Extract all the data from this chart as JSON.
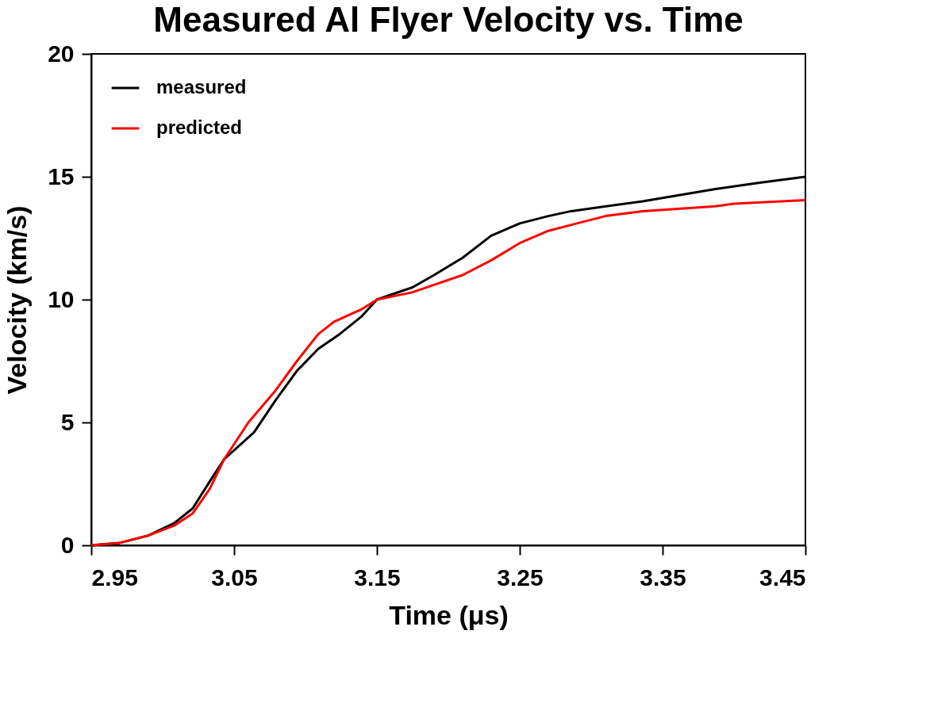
{
  "chart_data": {
    "type": "line",
    "title": "Measured Al Flyer Velocity vs. Time",
    "xlabel": "Time  (μs)",
    "ylabel": "Velocity  (km/s)",
    "xlim": [
      2.95,
      3.45
    ],
    "xticks": [
      2.95,
      3.05,
      3.15,
      3.25,
      3.35,
      3.45
    ],
    "ylim": [
      0,
      20
    ],
    "yticks": [
      0,
      5,
      10,
      15,
      20
    ],
    "grid": false,
    "legend": "top left",
    "marker": "none",
    "line_style": "solid",
    "series": [
      {
        "name": "measured",
        "color": "#000000",
        "x": [
          2.95,
          2.97,
          2.99,
          3.008,
          3.021,
          3.033,
          3.043,
          3.064,
          3.079,
          3.094,
          3.109,
          3.124,
          3.139,
          3.15,
          3.175,
          3.19,
          3.21,
          3.23,
          3.25,
          3.27,
          3.286,
          3.336,
          3.387,
          3.417,
          3.45
        ],
        "values": [
          0,
          0.1,
          0.4,
          0.9,
          1.5,
          2.6,
          3.5,
          4.6,
          5.9,
          7.1,
          8.0,
          8.6,
          9.3,
          10.0,
          10.5,
          11.0,
          11.7,
          12.6,
          13.1,
          13.4,
          13.6,
          14.0,
          14.5,
          14.75,
          15.0
        ]
      },
      {
        "name": "predicted",
        "color": "#ff0000",
        "x": [
          2.95,
          2.97,
          2.99,
          3.008,
          3.021,
          3.033,
          3.043,
          3.06,
          3.079,
          3.094,
          3.109,
          3.12,
          3.139,
          3.15,
          3.175,
          3.19,
          3.21,
          3.23,
          3.25,
          3.27,
          3.29,
          3.31,
          3.336,
          3.387,
          3.4,
          3.45
        ],
        "values": [
          0,
          0.1,
          0.4,
          0.8,
          1.3,
          2.3,
          3.5,
          5.0,
          6.3,
          7.5,
          8.6,
          9.1,
          9.6,
          10.0,
          10.3,
          10.6,
          11.0,
          11.6,
          12.3,
          12.8,
          13.1,
          13.4,
          13.6,
          13.8,
          13.9,
          14.05
        ]
      }
    ]
  }
}
